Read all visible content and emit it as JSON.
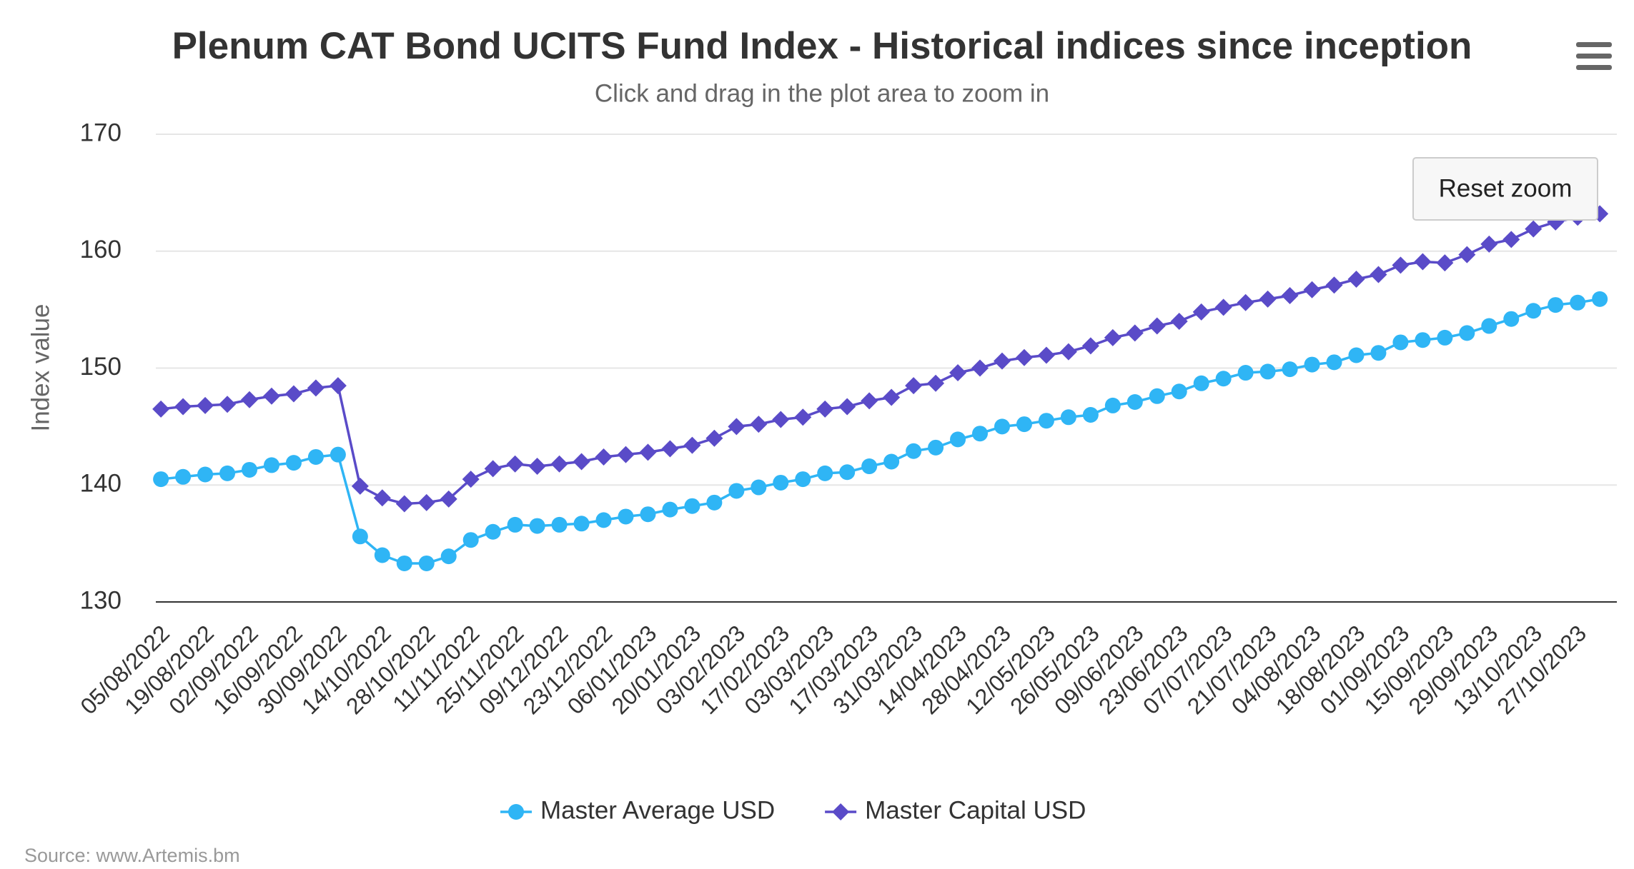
{
  "chart_data": {
    "type": "line",
    "title": "Plenum CAT Bond UCITS Fund Index - Historical indices since inception",
    "subtitle": "Click and drag in the plot area to zoom in",
    "ylabel": "Index value",
    "source": "Source: www.Artemis.bm",
    "reset_button": "Reset zoom",
    "categories": [
      "05/08/2022",
      null,
      "19/08/2022",
      null,
      "02/09/2022",
      null,
      "16/09/2022",
      null,
      "30/09/2022",
      null,
      "14/10/2022",
      null,
      "28/10/2022",
      null,
      "11/11/2022",
      null,
      "25/11/2022",
      null,
      "09/12/2022",
      null,
      "23/12/2022",
      null,
      "06/01/2023",
      null,
      "20/01/2023",
      null,
      "03/02/2023",
      null,
      "17/02/2023",
      null,
      "03/03/2023",
      null,
      "17/03/2023",
      null,
      "31/03/2023",
      null,
      "14/04/2023",
      null,
      "28/04/2023",
      null,
      "12/05/2023",
      null,
      "26/05/2023",
      null,
      "09/06/2023",
      null,
      "23/06/2023",
      null,
      "07/07/2023",
      null,
      "21/07/2023",
      null,
      "04/08/2023",
      null,
      "18/08/2023",
      null,
      "01/09/2023",
      null,
      "15/09/2023",
      null,
      "29/09/2023",
      null,
      "13/10/2023",
      null,
      "27/10/2023",
      null
    ],
    "series": [
      {
        "name": "Master Average USD",
        "color": "#2fb5f5",
        "marker": "circle",
        "values": [
          140.5,
          140.7,
          140.9,
          141.0,
          141.3,
          141.7,
          141.9,
          142.4,
          142.6,
          135.6,
          134.0,
          133.3,
          133.3,
          133.9,
          135.3,
          136.0,
          136.6,
          136.5,
          136.6,
          136.7,
          137.0,
          137.3,
          137.5,
          137.9,
          138.2,
          138.5,
          139.5,
          139.8,
          140.2,
          140.5,
          141.0,
          141.1,
          141.6,
          142.0,
          142.9,
          143.2,
          143.9,
          144.4,
          145.0,
          145.2,
          145.5,
          145.8,
          146.0,
          146.8,
          147.1,
          147.6,
          148.0,
          148.7,
          149.1,
          149.6,
          149.7,
          149.9,
          150.3,
          150.5,
          151.1,
          151.3,
          152.2,
          152.4,
          152.6,
          153.0,
          153.6,
          154.2,
          154.9,
          155.4,
          155.6,
          155.9
        ]
      },
      {
        "name": "Master Capital USD",
        "color": "#5a4bc8",
        "marker": "diamond",
        "values": [
          146.5,
          146.7,
          146.8,
          146.9,
          147.3,
          147.6,
          147.8,
          148.3,
          148.5,
          139.9,
          138.9,
          138.4,
          138.5,
          138.8,
          140.5,
          141.4,
          141.8,
          141.6,
          141.8,
          142.0,
          142.4,
          142.6,
          142.8,
          143.1,
          143.4,
          144.0,
          145.0,
          145.2,
          145.6,
          145.8,
          146.5,
          146.7,
          147.2,
          147.5,
          148.5,
          148.7,
          149.6,
          150.0,
          150.6,
          150.9,
          151.1,
          151.4,
          151.9,
          152.6,
          153.0,
          153.6,
          154.0,
          154.8,
          155.2,
          155.6,
          155.9,
          156.2,
          156.7,
          157.1,
          157.6,
          158.0,
          158.8,
          159.1,
          159.0,
          159.7,
          160.6,
          161.0,
          161.9,
          162.5,
          162.9,
          163.2
        ]
      }
    ],
    "ylim": [
      130,
      170
    ],
    "yticks": [
      130,
      140,
      150,
      160,
      170
    ],
    "grid": true
  }
}
